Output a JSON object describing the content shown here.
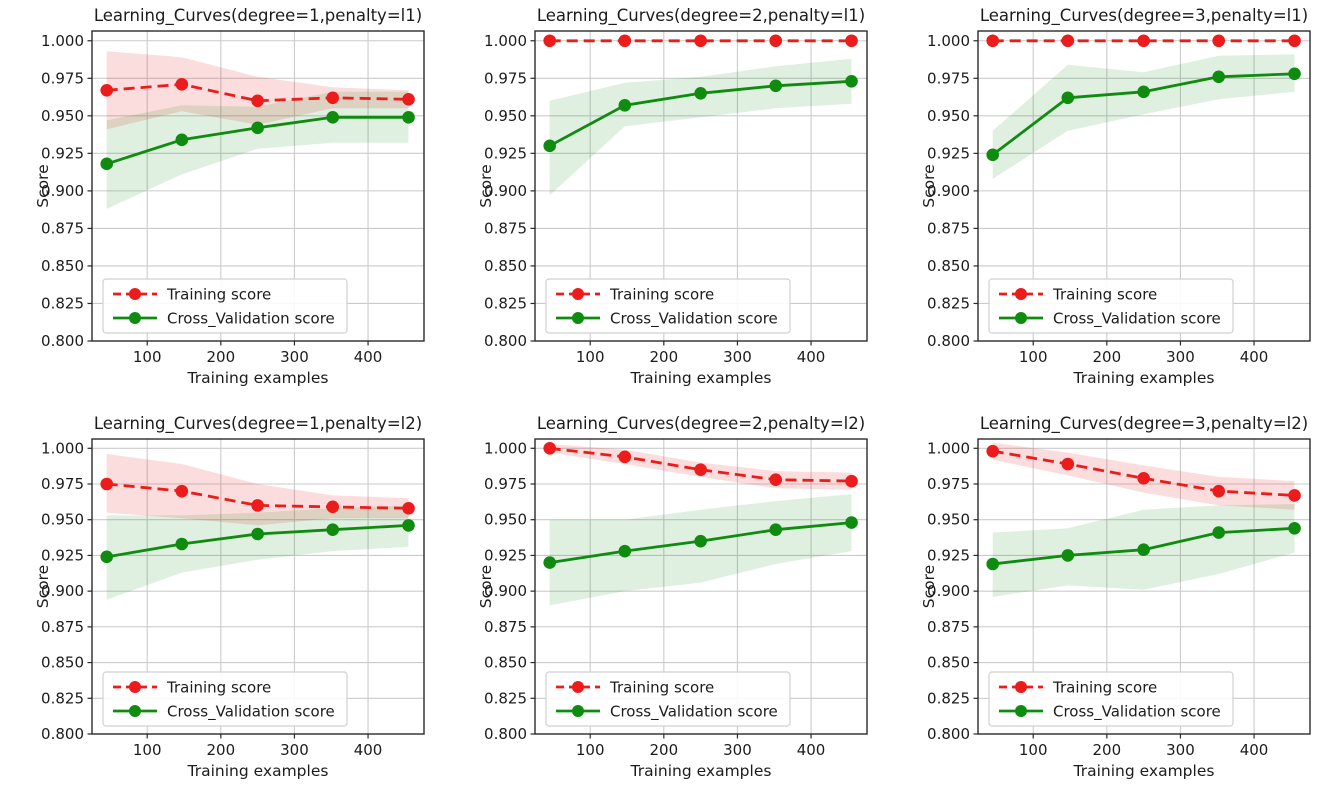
{
  "figure": {
    "background": "#ffffff",
    "colors": {
      "training": "#ec1c1c",
      "cross_validation": "#0f8c0f",
      "training_band_opacity": 0.15,
      "cv_band_opacity": 0.13,
      "grid": "#cbcbcb",
      "spine": "#2a2a2a",
      "text": "#1c1c1c",
      "legend_border": "#d0d0d0",
      "legend_bg": "#ffffff"
    },
    "legend": {
      "position": "lower-left",
      "entries": [
        {
          "label": "Training score",
          "style": "dashed",
          "color_key": "training"
        },
        {
          "label": "Cross_Validation score",
          "style": "solid",
          "color_key": "cross_validation"
        }
      ]
    }
  },
  "chart_data": [
    {
      "type": "line",
      "title": "Learning_Curves(degree=1,penalty=l1)",
      "xlabel": "Training examples",
      "ylabel": "Score",
      "x": [
        45,
        147,
        250,
        352,
        455
      ],
      "xlim": [
        25,
        476
      ],
      "ylim": [
        0.8,
        1.0065
      ],
      "xticks": [
        100,
        200,
        300,
        400
      ],
      "xtick_labels": [
        "100",
        "200",
        "300",
        "400"
      ],
      "yticks": [
        1.0,
        0.975,
        0.95,
        0.925,
        0.9,
        0.875,
        0.85,
        0.825,
        0.8
      ],
      "ytick_labels": [
        "1.000",
        "0.975",
        "0.950",
        "0.925",
        "0.900",
        "0.875",
        "0.850",
        "0.825",
        "0.800"
      ],
      "grid": true,
      "legend_position": "lower left",
      "series": [
        {
          "name": "Training score",
          "style": "dashed",
          "color_key": "training",
          "values": [
            0.967,
            0.971,
            0.96,
            0.962,
            0.961
          ],
          "band_lower": [
            0.941,
            0.953,
            0.944,
            0.955,
            0.955
          ],
          "band_upper": [
            0.993,
            0.989,
            0.976,
            0.969,
            0.967
          ]
        },
        {
          "name": "Cross_Validation score",
          "style": "solid",
          "color_key": "cross_validation",
          "values": [
            0.918,
            0.934,
            0.942,
            0.949,
            0.949
          ],
          "band_lower": [
            0.888,
            0.911,
            0.928,
            0.932,
            0.932
          ],
          "band_upper": [
            0.947,
            0.957,
            0.956,
            0.966,
            0.966
          ]
        }
      ]
    },
    {
      "type": "line",
      "title": "Learning_Curves(degree=2,penalty=l1)",
      "xlabel": "Training examples",
      "ylabel": "Score",
      "x": [
        45,
        147,
        250,
        352,
        455
      ],
      "xlim": [
        25,
        476
      ],
      "ylim": [
        0.8,
        1.0065
      ],
      "xticks": [
        100,
        200,
        300,
        400
      ],
      "xtick_labels": [
        "100",
        "200",
        "300",
        "400"
      ],
      "yticks": [
        1.0,
        0.975,
        0.95,
        0.925,
        0.9,
        0.875,
        0.85,
        0.825,
        0.8
      ],
      "ytick_labels": [
        "1.000",
        "0.975",
        "0.950",
        "0.925",
        "0.900",
        "0.875",
        "0.850",
        "0.825",
        "0.800"
      ],
      "grid": true,
      "legend_position": "lower left",
      "series": [
        {
          "name": "Training score",
          "style": "dashed",
          "color_key": "training",
          "values": [
            1.0,
            1.0,
            1.0,
            1.0,
            1.0
          ],
          "band_lower": [
            1.0,
            1.0,
            1.0,
            1.0,
            1.0
          ],
          "band_upper": [
            1.0,
            1.0,
            1.0,
            1.0,
            1.0
          ]
        },
        {
          "name": "Cross_Validation score",
          "style": "solid",
          "color_key": "cross_validation",
          "values": [
            0.93,
            0.957,
            0.965,
            0.97,
            0.973
          ],
          "band_lower": [
            0.897,
            0.943,
            0.949,
            0.955,
            0.958
          ],
          "band_upper": [
            0.96,
            0.972,
            0.976,
            0.983,
            0.988
          ]
        }
      ]
    },
    {
      "type": "line",
      "title": "Learning_Curves(degree=3,penalty=l1)",
      "xlabel": "Training examples",
      "ylabel": "Score",
      "x": [
        45,
        147,
        250,
        352,
        455
      ],
      "xlim": [
        25,
        476
      ],
      "ylim": [
        0.8,
        1.0065
      ],
      "xticks": [
        100,
        200,
        300,
        400
      ],
      "xtick_labels": [
        "100",
        "200",
        "300",
        "400"
      ],
      "yticks": [
        1.0,
        0.975,
        0.95,
        0.925,
        0.9,
        0.875,
        0.85,
        0.825,
        0.8
      ],
      "ytick_labels": [
        "1.000",
        "0.975",
        "0.950",
        "0.925",
        "0.900",
        "0.875",
        "0.850",
        "0.825",
        "0.800"
      ],
      "grid": true,
      "legend_position": "lower left",
      "series": [
        {
          "name": "Training score",
          "style": "dashed",
          "color_key": "training",
          "values": [
            1.0,
            1.0,
            1.0,
            1.0,
            1.0
          ],
          "band_lower": [
            1.0,
            1.0,
            1.0,
            1.0,
            1.0
          ],
          "band_upper": [
            1.0,
            1.0,
            1.0,
            1.0,
            1.0
          ]
        },
        {
          "name": "Cross_Validation score",
          "style": "solid",
          "color_key": "cross_validation",
          "values": [
            0.924,
            0.962,
            0.966,
            0.976,
            0.978
          ],
          "band_lower": [
            0.908,
            0.94,
            0.951,
            0.961,
            0.966
          ],
          "band_upper": [
            0.94,
            0.984,
            0.979,
            0.99,
            0.991
          ]
        }
      ]
    },
    {
      "type": "line",
      "title": "Learning_Curves(degree=1,penalty=l2)",
      "xlabel": "Training examples",
      "ylabel": "Score",
      "x": [
        45,
        147,
        250,
        352,
        455
      ],
      "xlim": [
        25,
        476
      ],
      "ylim": [
        0.8,
        1.0065
      ],
      "xticks": [
        100,
        200,
        300,
        400
      ],
      "xtick_labels": [
        "100",
        "200",
        "300",
        "400"
      ],
      "yticks": [
        1.0,
        0.975,
        0.95,
        0.925,
        0.9,
        0.875,
        0.85,
        0.825,
        0.8
      ],
      "ytick_labels": [
        "1.000",
        "0.975",
        "0.950",
        "0.925",
        "0.900",
        "0.875",
        "0.850",
        "0.825",
        "0.800"
      ],
      "grid": true,
      "legend_position": "lower left",
      "series": [
        {
          "name": "Training score",
          "style": "dashed",
          "color_key": "training",
          "values": [
            0.975,
            0.97,
            0.96,
            0.959,
            0.958
          ],
          "band_lower": [
            0.955,
            0.951,
            0.946,
            0.951,
            0.951
          ],
          "band_upper": [
            0.996,
            0.989,
            0.975,
            0.967,
            0.965
          ]
        },
        {
          "name": "Cross_Validation score",
          "style": "solid",
          "color_key": "cross_validation",
          "values": [
            0.924,
            0.933,
            0.94,
            0.943,
            0.946
          ],
          "band_lower": [
            0.894,
            0.913,
            0.922,
            0.928,
            0.931
          ],
          "band_upper": [
            0.953,
            0.953,
            0.955,
            0.958,
            0.96
          ]
        }
      ]
    },
    {
      "type": "line",
      "title": "Learning_Curves(degree=2,penalty=l2)",
      "xlabel": "Training examples",
      "ylabel": "Score",
      "x": [
        45,
        147,
        250,
        352,
        455
      ],
      "xlim": [
        25,
        476
      ],
      "ylim": [
        0.8,
        1.0065
      ],
      "xticks": [
        100,
        200,
        300,
        400
      ],
      "xtick_labels": [
        "100",
        "200",
        "300",
        "400"
      ],
      "yticks": [
        1.0,
        0.975,
        0.95,
        0.925,
        0.9,
        0.875,
        0.85,
        0.825,
        0.8
      ],
      "ytick_labels": [
        "1.000",
        "0.975",
        "0.950",
        "0.925",
        "0.900",
        "0.875",
        "0.850",
        "0.825",
        "0.800"
      ],
      "grid": true,
      "legend_position": "lower left",
      "series": [
        {
          "name": "Training score",
          "style": "dashed",
          "color_key": "training",
          "values": [
            1.0,
            0.994,
            0.985,
            0.978,
            0.977
          ],
          "band_lower": [
            0.997,
            0.989,
            0.98,
            0.972,
            0.971
          ],
          "band_upper": [
            1.003,
            0.999,
            0.99,
            0.984,
            0.983
          ]
        },
        {
          "name": "Cross_Validation score",
          "style": "solid",
          "color_key": "cross_validation",
          "values": [
            0.92,
            0.928,
            0.935,
            0.943,
            0.948
          ],
          "band_lower": [
            0.89,
            0.9,
            0.906,
            0.919,
            0.928
          ],
          "band_upper": [
            0.95,
            0.95,
            0.957,
            0.963,
            0.968
          ]
        }
      ]
    },
    {
      "type": "line",
      "title": "Learning_Curves(degree=3,penalty=l2)",
      "xlabel": "Training examples",
      "ylabel": "Score",
      "x": [
        45,
        147,
        250,
        352,
        455
      ],
      "xlim": [
        25,
        476
      ],
      "ylim": [
        0.8,
        1.0065
      ],
      "xticks": [
        100,
        200,
        300,
        400
      ],
      "xtick_labels": [
        "100",
        "200",
        "300",
        "400"
      ],
      "yticks": [
        1.0,
        0.975,
        0.95,
        0.925,
        0.9,
        0.875,
        0.85,
        0.825,
        0.8
      ],
      "ytick_labels": [
        "1.000",
        "0.975",
        "0.950",
        "0.925",
        "0.900",
        "0.875",
        "0.850",
        "0.825",
        "0.800"
      ],
      "grid": true,
      "legend_position": "lower left",
      "series": [
        {
          "name": "Training score",
          "style": "dashed",
          "color_key": "training",
          "values": [
            0.998,
            0.989,
            0.979,
            0.97,
            0.967
          ],
          "band_lower": [
            0.992,
            0.981,
            0.969,
            0.96,
            0.957
          ],
          "band_upper": [
            1.004,
            0.997,
            0.988,
            0.98,
            0.977
          ]
        },
        {
          "name": "Cross_Validation score",
          "style": "solid",
          "color_key": "cross_validation",
          "values": [
            0.919,
            0.925,
            0.929,
            0.941,
            0.944
          ],
          "band_lower": [
            0.896,
            0.904,
            0.901,
            0.912,
            0.927
          ],
          "band_upper": [
            0.941,
            0.944,
            0.957,
            0.96,
            0.961
          ]
        }
      ]
    }
  ]
}
